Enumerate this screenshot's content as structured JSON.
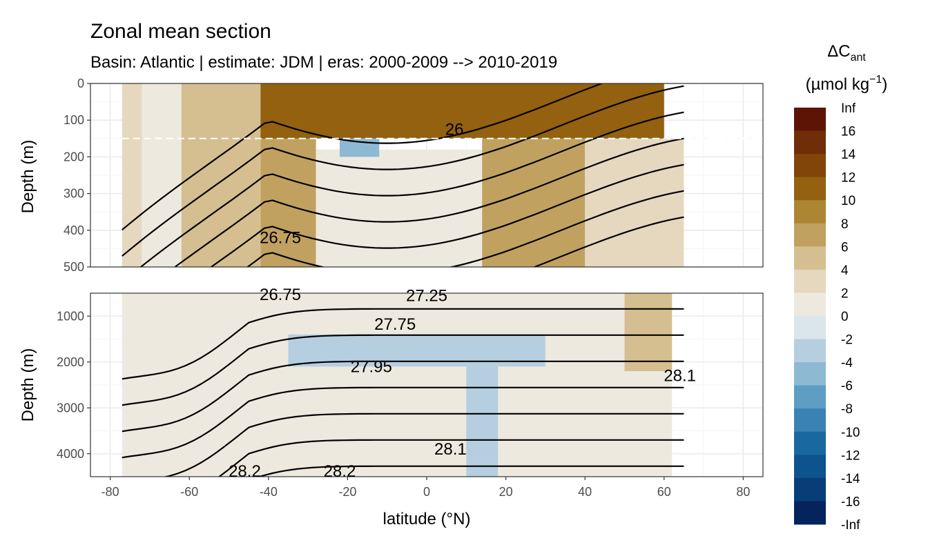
{
  "chart_data": {
    "type": "contour-section",
    "title": "Zonal mean section",
    "subtitle": "Basin: Atlantic | estimate: JDM  | eras: 2000-2009 --> 2010-2019",
    "xlabel": "latitude (°N)",
    "ylabel": "Depth (m)",
    "xlim": [
      -85,
      85
    ],
    "x_ticks": [
      -80,
      -60,
      -40,
      -20,
      0,
      20,
      40,
      60,
      80
    ],
    "data_lat_range": [
      -77,
      65
    ],
    "panels": [
      {
        "name": "upper",
        "ylim": [
          0,
          500
        ],
        "y_ticks": [
          0,
          100,
          200,
          300,
          400,
          500
        ],
        "reference_line_depth": 150
      },
      {
        "name": "lower",
        "ylim": [
          500,
          4500
        ],
        "y_ticks": [
          1000,
          2000,
          3000,
          4000
        ]
      }
    ],
    "isopycnal_labels": [
      {
        "text": "26",
        "lat": 7,
        "depth": 125
      },
      {
        "text": "26.75",
        "lat": -37,
        "depth": 420
      },
      {
        "text": "26.75",
        "lat": -37,
        "depth": 510
      },
      {
        "text": "27.25",
        "lat": 0,
        "depth": 550
      },
      {
        "text": "27.75",
        "lat": -8,
        "depth": 1180
      },
      {
        "text": "27.95",
        "lat": -14,
        "depth": 2100
      },
      {
        "text": "28.1",
        "lat": 6,
        "depth": 3900
      },
      {
        "text": "28.2",
        "lat": -46,
        "depth": 4450
      },
      {
        "text": "28.2",
        "lat": -22,
        "depth": 4550
      },
      {
        "text": "28.1",
        "lat": 64,
        "depth": 2300
      }
    ],
    "legend": {
      "title_main": "ΔC",
      "title_sub": "ant",
      "unit_main": "(µmol kg",
      "unit_sup": "−1",
      "unit_close": ")",
      "breaks": [
        "Inf",
        "16",
        "14",
        "12",
        "10",
        "8",
        "6",
        "4",
        "2",
        "0",
        "-2",
        "-4",
        "-6",
        "-8",
        "-10",
        "-12",
        "-14",
        "-16",
        "-Inf"
      ],
      "colors": [
        "#5e1405",
        "#6f2e08",
        "#81450a",
        "#93610f",
        "#ad8634",
        "#c1a160",
        "#d5bf90",
        "#e5d8bf",
        "#eee9df",
        "#dbe5ec",
        "#b5cfe0",
        "#8db9d3",
        "#5e9ec5",
        "#3a82b4",
        "#1968a0",
        "#0d548f",
        "#073e78",
        "#05245d"
      ]
    },
    "fill_bands": {
      "upper": [
        {
          "from": -77,
          "to": -72,
          "top": 0,
          "bottom": 500,
          "level": "2 to 4"
        },
        {
          "from": -72,
          "to": -62,
          "top": 0,
          "bottom": 500,
          "level": "0 to 2"
        },
        {
          "from": -62,
          "to": -42,
          "top": 0,
          "bottom": 500,
          "level": "4 to 6"
        },
        {
          "from": -42,
          "to": -28,
          "top": 100,
          "bottom": 500,
          "level": "6 to 8"
        },
        {
          "from": -28,
          "to": 14,
          "top": 180,
          "bottom": 500,
          "level": "0 to 2"
        },
        {
          "from": 14,
          "to": 40,
          "top": 150,
          "bottom": 500,
          "level": "6 to 8"
        },
        {
          "from": 40,
          "to": 65,
          "top": 150,
          "bottom": 500,
          "level": "2 to 4"
        },
        {
          "from": -42,
          "to": 60,
          "top": 0,
          "bottom": 150,
          "level": "10 to 12"
        },
        {
          "from": -22,
          "to": -12,
          "top": 150,
          "bottom": 200,
          "level": "-6 to -4"
        }
      ],
      "lower": [
        {
          "from": -77,
          "to": 62,
          "top": 500,
          "bottom": 4500,
          "level": "0 to 2"
        },
        {
          "from": -35,
          "to": 30,
          "top": 1400,
          "bottom": 2100,
          "level": "-4 to -2"
        },
        {
          "from": 10,
          "to": 18,
          "top": 2100,
          "bottom": 4500,
          "level": "-4 to -2"
        },
        {
          "from": 50,
          "to": 62,
          "top": 500,
          "bottom": 2200,
          "level": "4 to 6"
        }
      ]
    }
  }
}
